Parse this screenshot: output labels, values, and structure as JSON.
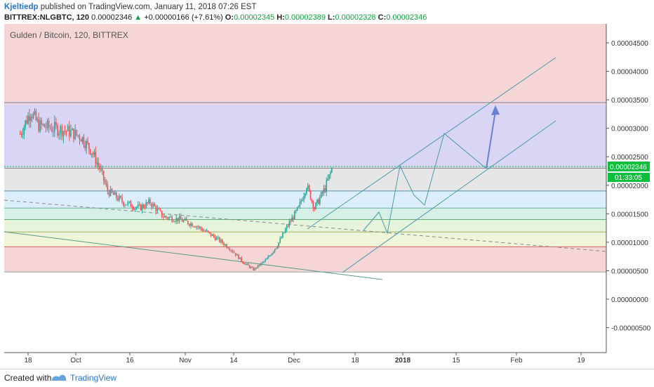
{
  "header": {
    "author": "Kjeltiedp",
    "published": "published on TradingView.com, January 11, 2018 07:26 EST",
    "symbol": "BITTREX:NLGBTC, 120",
    "last": "0.00002346",
    "change": "+0.00000166 (+7.61%)",
    "o_label": "O:",
    "o": "0.00002345",
    "h_label": "H:",
    "h": "0.00002389",
    "l_label": "L:",
    "l": "0.00002328",
    "c_label": "C:",
    "c": "0.00002346"
  },
  "chart_title": "Gulden / Bitcoin, 120, BITTREX",
  "footer": {
    "created": "Created with",
    "brand": "TradingView"
  },
  "colors": {
    "up": "#26a69a",
    "down": "#ef5350",
    "accent": "#2a74c9",
    "price_tag": "#0cbf3c"
  },
  "chart_data": {
    "type": "candlestick",
    "title": "Gulden / Bitcoin, 120, BITTREX",
    "x_ticks": [
      "18",
      "Oct",
      "16",
      "Nov",
      "14",
      "Dec",
      "18",
      "2018",
      "15",
      "Feb",
      "19"
    ],
    "y_ticks": [
      "0.00004500",
      "0.00004000",
      "0.00003500",
      "0.00003000",
      "0.00002500",
      "0.00002000",
      "0.00001500",
      "0.00001000",
      "0.00000500",
      "0.00000000",
      "-0.00000500"
    ],
    "ylim": [
      -7.4e-06,
      4.8e-06
    ],
    "last_price": "0.00002346",
    "countdown": "01:33:05",
    "price_path": [
      [
        "Sep 15",
        2.9e-05
      ],
      [
        "Sep 19",
        3.3e-05
      ],
      [
        "Sep 22",
        3.05e-05
      ],
      [
        "Sep 28",
        3e-05
      ],
      [
        "Oct 3",
        2.95e-05
      ],
      [
        "Oct 8",
        2.85e-05
      ],
      [
        "Oct 12",
        2.6e-05
      ],
      [
        "Oct 15",
        2.3e-05
      ],
      [
        "Oct 18",
        1.9e-05
      ],
      [
        "Oct 24",
        1.7e-05
      ],
      [
        "Oct 30",
        1.6e-05
      ],
      [
        "Nov 3",
        1.7e-05
      ],
      [
        "Nov 8",
        1.45e-05
      ],
      [
        "Nov 14",
        1.4e-05
      ],
      [
        "Nov 20",
        1.3e-05
      ],
      [
        "Nov 27",
        1.1e-05
      ],
      [
        "Dec 3",
        9e-06
      ],
      [
        "Dec 8",
        6.5e-06
      ],
      [
        "Dec 12",
        5.2e-06
      ],
      [
        "Dec 17",
        7e-06
      ],
      [
        "Dec 21",
        9.5e-06
      ],
      [
        "Dec 25",
        1.3e-05
      ],
      [
        "Dec 29",
        1.6e-05
      ],
      [
        "Jan 1",
        2e-05
      ],
      [
        "Jan 4",
        1.6e-05
      ],
      [
        "Jan 8",
        1.95e-05
      ],
      [
        "Jan 11",
        2.346e-05
      ]
    ],
    "fib_bands": [
      3.45e-05,
      2.3e-05,
      1.9e-05,
      1.6e-05,
      1.4e-05,
      1.18e-05,
      9.2e-06,
      4.8e-06
    ],
    "grid": false
  }
}
